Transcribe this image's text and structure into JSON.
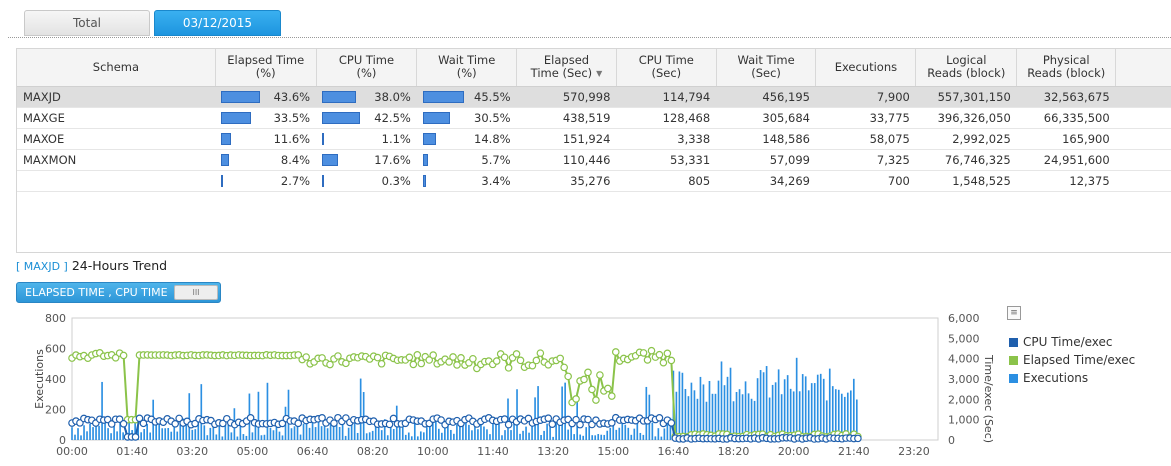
{
  "tabs": {
    "total": "Total",
    "date": "03/12/2015"
  },
  "table": {
    "headers": {
      "schema": "Schema",
      "elapsed_pct_l1": "Elapsed Time",
      "elapsed_pct_l2": "(%)",
      "cpu_pct_l1": "CPU Time",
      "cpu_pct_l2": "(%)",
      "wait_pct_l1": "Wait Time",
      "wait_pct_l2": "(%)",
      "elapsed_sec_l1": "Elapsed",
      "elapsed_sec_l2": "Time (Sec)",
      "cpu_sec_l1": "CPU Time",
      "cpu_sec_l2": "(Sec)",
      "wait_sec_l1": "Wait Time",
      "wait_sec_l2": "(Sec)",
      "executions": "Executions",
      "logical_l1": "Logical",
      "logical_l2": "Reads (block)",
      "physical_l1": "Physical",
      "physical_l2": "Reads (block)"
    },
    "rows": [
      {
        "schema": "MAXJD",
        "elapsed_pct": "43.6%",
        "elapsed_frac": 0.436,
        "cpu_pct": "38.0%",
        "cpu_frac": 0.38,
        "wait_pct": "45.5%",
        "wait_frac": 0.455,
        "elapsed_sec": "570,998",
        "cpu_sec": "114,794",
        "wait_sec": "456,195",
        "executions": "7,900",
        "logical": "557,301,150",
        "physical": "32,563,675"
      },
      {
        "schema": "MAXGE",
        "elapsed_pct": "33.5%",
        "elapsed_frac": 0.335,
        "cpu_pct": "42.5%",
        "cpu_frac": 0.425,
        "wait_pct": "30.5%",
        "wait_frac": 0.305,
        "elapsed_sec": "438,519",
        "cpu_sec": "128,468",
        "wait_sec": "305,684",
        "executions": "33,775",
        "logical": "396,326,050",
        "physical": "66,335,500"
      },
      {
        "schema": "MAXOE",
        "elapsed_pct": "11.6%",
        "elapsed_frac": 0.116,
        "cpu_pct": "1.1%",
        "cpu_frac": 0.011,
        "wait_pct": "14.8%",
        "wait_frac": 0.148,
        "elapsed_sec": "151,924",
        "cpu_sec": "3,338",
        "wait_sec": "148,586",
        "executions": "58,075",
        "logical": "2,992,025",
        "physical": "165,900"
      },
      {
        "schema": "MAXMON",
        "elapsed_pct": "8.4%",
        "elapsed_frac": 0.084,
        "cpu_pct": "17.6%",
        "cpu_frac": 0.176,
        "wait_pct": "5.7%",
        "wait_frac": 0.057,
        "elapsed_sec": "110,446",
        "cpu_sec": "53,331",
        "wait_sec": "57,099",
        "executions": "7,325",
        "logical": "76,746,325",
        "physical": "24,951,600"
      },
      {
        "schema": "",
        "elapsed_pct": "2.7%",
        "elapsed_frac": 0.027,
        "cpu_pct": "0.3%",
        "cpu_frac": 0.003,
        "wait_pct": "3.4%",
        "wait_frac": 0.034,
        "elapsed_sec": "35,276",
        "cpu_sec": "805",
        "wait_sec": "34,269",
        "executions": "700",
        "logical": "1,548,525",
        "physical": "12,375"
      }
    ]
  },
  "trend": {
    "schema_label": "[ MAXJD ]",
    "title": "24-Hours Trend",
    "toggle_label": "ELAPSED TIME , CPU TIME",
    "toggle_knob": "III",
    "export_icon": "chart-export-icon"
  },
  "chart_data": {
    "type": "bar",
    "ylabel": "Executions",
    "y2label": "Time/exec (Sec)",
    "ylim": [
      0,
      800
    ],
    "y2lim": [
      0,
      6000
    ],
    "yticks": [
      "0",
      "200",
      "400",
      "600",
      "800"
    ],
    "y2ticks": [
      "0",
      "1,000",
      "2,000",
      "3,000",
      "4,000",
      "5,000",
      "6,000"
    ],
    "xticks": [
      "00:00",
      "01:40",
      "03:20",
      "05:00",
      "06:40",
      "08:20",
      "10:00",
      "11:40",
      "13:20",
      "15:00",
      "16:40",
      "18:20",
      "20:00",
      "21:40",
      "23:20"
    ],
    "x_range_minutes": [
      0,
      1440
    ],
    "bucket_minutes": 5,
    "legend": [
      {
        "name": "CPU Time/exec",
        "color": "#1f5fad"
      },
      {
        "name": "Elapsed Time/exec",
        "color": "#8bc34a"
      },
      {
        "name": "Executions",
        "color": "#2b8fe2"
      }
    ],
    "executions_color": "#2b8fe2",
    "elapsed_color": "#8bc34a",
    "cpu_color": "#1f5fad",
    "legend_position": "right"
  }
}
